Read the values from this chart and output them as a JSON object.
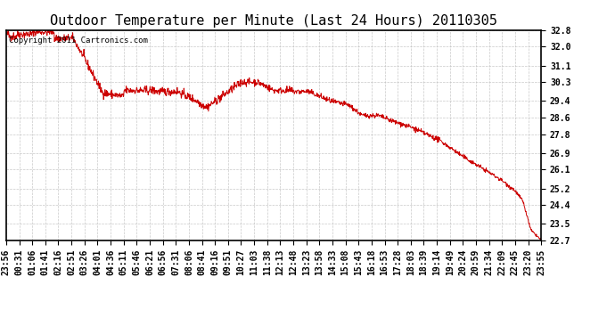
{
  "title": "Outdoor Temperature per Minute (Last 24 Hours) 20110305",
  "copyright_text": "Copyright 2011 Cartronics.com",
  "line_color": "#cc0000",
  "background_color": "#ffffff",
  "grid_color": "#bbbbbb",
  "ylim": [
    22.7,
    32.8
  ],
  "yticks": [
    22.7,
    23.5,
    24.4,
    25.2,
    26.1,
    26.9,
    27.8,
    28.6,
    29.4,
    30.3,
    31.1,
    32.0,
    32.8
  ],
  "x_labels": [
    "23:56",
    "00:31",
    "01:06",
    "01:41",
    "02:16",
    "02:51",
    "03:26",
    "04:01",
    "04:36",
    "05:11",
    "05:46",
    "06:21",
    "06:56",
    "07:31",
    "08:06",
    "08:41",
    "09:16",
    "09:51",
    "10:27",
    "11:03",
    "11:38",
    "12:13",
    "12:48",
    "13:23",
    "13:58",
    "14:33",
    "15:08",
    "15:43",
    "16:18",
    "16:53",
    "17:28",
    "18:03",
    "18:39",
    "19:14",
    "19:49",
    "20:24",
    "20:59",
    "21:34",
    "22:09",
    "22:45",
    "23:20",
    "23:55"
  ],
  "title_fontsize": 11,
  "tick_fontsize": 7,
  "copyright_fontsize": 6.5,
  "line_width": 0.7
}
